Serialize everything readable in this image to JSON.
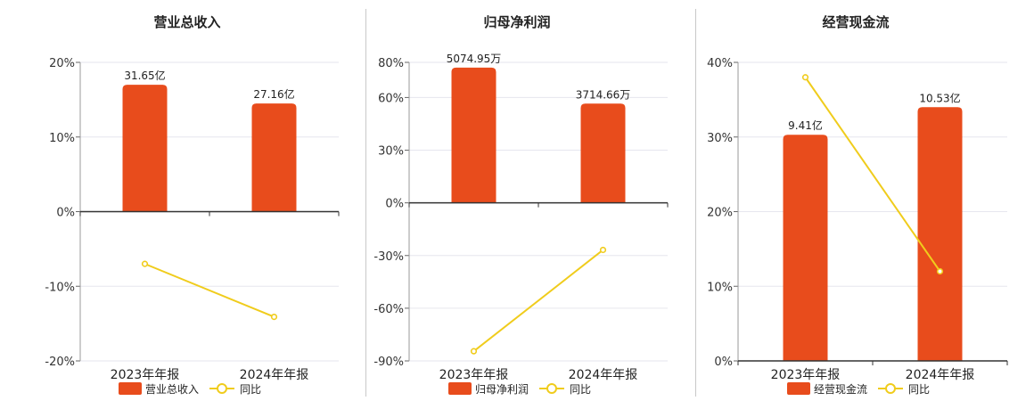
{
  "colors": {
    "bar": "#e84c1c",
    "line": "#f0cc1c",
    "grid": "#e6e6ee",
    "axis": "#333333",
    "text": "#222222"
  },
  "legend": {
    "line_label": "同比"
  },
  "chart_data": [
    {
      "type": "bar",
      "title": "营业总收入",
      "categories": [
        "2023年年报",
        "2024年年报"
      ],
      "series": [
        {
          "name": "营业总收入",
          "type": "bar",
          "values": [
            17.0,
            14.5
          ],
          "labels": [
            "31.65亿",
            "27.16亿"
          ]
        },
        {
          "name": "同比",
          "type": "line",
          "values": [
            -7.0,
            -14.1
          ]
        }
      ],
      "ylim": [
        -20,
        20
      ],
      "yticks": [
        20,
        10,
        0,
        -10,
        -20
      ],
      "ytick_labels": [
        "20%",
        "10%",
        "0%",
        "-10%",
        "-20%"
      ],
      "grid": true,
      "legend_position": "bottom"
    },
    {
      "type": "bar",
      "title": "归母净利润",
      "categories": [
        "2023年年报",
        "2024年年报"
      ],
      "series": [
        {
          "name": "归母净利润",
          "type": "bar",
          "values": [
            77.0,
            56.5
          ],
          "labels": [
            "5074.95万",
            "3714.66万"
          ]
        },
        {
          "name": "同比",
          "type": "line",
          "values": [
            -84.5,
            -26.8
          ]
        }
      ],
      "ylim": [
        -90,
        80
      ],
      "yticks": [
        80,
        60,
        30,
        0,
        -30,
        -60,
        -90
      ],
      "ytick_labels": [
        "80%",
        "60%",
        "30%",
        "0%",
        "-30%",
        "-60%",
        "-90%"
      ],
      "grid": true,
      "legend_position": "bottom"
    },
    {
      "type": "bar",
      "title": "经营现金流",
      "categories": [
        "2023年年报",
        "2024年年报"
      ],
      "series": [
        {
          "name": "经营现金流",
          "type": "bar",
          "values": [
            30.3,
            34.0
          ],
          "labels": [
            "9.41亿",
            "10.53亿"
          ]
        },
        {
          "name": "同比",
          "type": "line",
          "values": [
            38.0,
            12.0
          ]
        }
      ],
      "ylim": [
        0,
        40
      ],
      "yticks": [
        40,
        30,
        20,
        10,
        0
      ],
      "ytick_labels": [
        "40%",
        "30%",
        "20%",
        "10%",
        "0%"
      ],
      "grid": true,
      "legend_position": "bottom"
    }
  ]
}
